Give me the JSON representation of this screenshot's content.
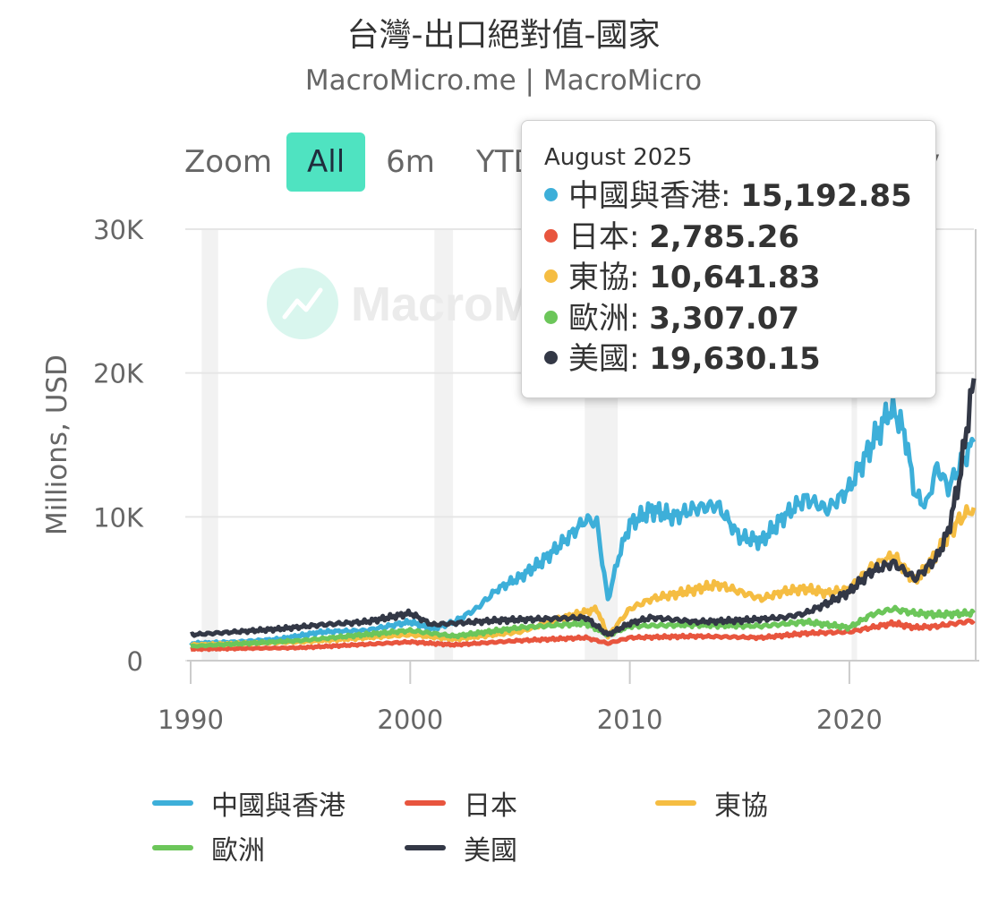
{
  "title": "台灣-出口絕對值-國家",
  "subtitle": "MacroMicro.me | MacroMicro",
  "watermark": "MacroMicro",
  "zoom": {
    "label": "Zoom",
    "buttons": [
      "All",
      "6m",
      "YTD"
    ],
    "active": "All",
    "range_end": "y"
  },
  "tooltip": {
    "date": "August 2025",
    "rows": [
      {
        "name": "中國與香港",
        "value": "15,192.85",
        "color": "#3dafd9"
      },
      {
        "name": "日本",
        "value": "2,785.26",
        "color": "#e8553e"
      },
      {
        "name": "東協",
        "value": "10,641.83",
        "color": "#f5bd42"
      },
      {
        "name": "歐洲",
        "value": "3,307.07",
        "color": "#6cc65a"
      },
      {
        "name": "美國",
        "value": "19,630.15",
        "color": "#333846"
      }
    ]
  },
  "chart_data": {
    "type": "line",
    "title": "台灣-出口絕對值-國家",
    "ylabel": "Millions, USD",
    "ylim": [
      0,
      30000
    ],
    "yticks": [
      0,
      10000,
      20000,
      30000
    ],
    "ytick_labels": [
      "0",
      "10K",
      "20K",
      "30K"
    ],
    "xlim": [
      1990,
      2025.67
    ],
    "xticks": [
      1990,
      2000,
      2010,
      2020
    ],
    "xtick_labels": [
      "1990",
      "2000",
      "2010",
      "2020"
    ],
    "recession_bands": [
      [
        1990.5,
        1991.25
      ],
      [
        2001.1,
        2001.95
      ],
      [
        2007.95,
        2009.45
      ],
      [
        2020.1,
        2020.35
      ]
    ],
    "grid": true,
    "legend_position": "bottom",
    "series": [
      {
        "name": "中國與香港",
        "color": "#3dafd9",
        "points": [
          [
            1990,
            1200
          ],
          [
            1992,
            1300
          ],
          [
            1994,
            1500
          ],
          [
            1996,
            2000
          ],
          [
            1998,
            2100
          ],
          [
            2000,
            2700
          ],
          [
            2001,
            2200
          ],
          [
            2002,
            2700
          ],
          [
            2003,
            3600
          ],
          [
            2004,
            5000
          ],
          [
            2005,
            5800
          ],
          [
            2006,
            6900
          ],
          [
            2007,
            8300
          ],
          [
            2008,
            9800
          ],
          [
            2008.5,
            9600
          ],
          [
            2009.0,
            4200
          ],
          [
            2009.5,
            7300
          ],
          [
            2010,
            9500
          ],
          [
            2011,
            10500
          ],
          [
            2012,
            10000
          ],
          [
            2013,
            10600
          ],
          [
            2014,
            10800
          ],
          [
            2015,
            8600
          ],
          [
            2016,
            8300
          ],
          [
            2017,
            10000
          ],
          [
            2018,
            11300
          ],
          [
            2019,
            10500
          ],
          [
            2020,
            12000
          ],
          [
            2021,
            15000
          ],
          [
            2021.9,
            17600
          ],
          [
            2022.5,
            16000
          ],
          [
            2023,
            11500
          ],
          [
            2023.5,
            10800
          ],
          [
            2024,
            13500
          ],
          [
            2024.5,
            12000
          ],
          [
            2025,
            13500
          ],
          [
            2025.67,
            15192.85
          ]
        ]
      },
      {
        "name": "日本",
        "color": "#e8553e",
        "points": [
          [
            1990,
            800
          ],
          [
            1995,
            900
          ],
          [
            2000,
            1300
          ],
          [
            2002,
            1100
          ],
          [
            2005,
            1400
          ],
          [
            2008,
            1600
          ],
          [
            2009,
            1200
          ],
          [
            2010,
            1600
          ],
          [
            2013,
            1700
          ],
          [
            2016,
            1600
          ],
          [
            2018,
            1900
          ],
          [
            2020,
            2000
          ],
          [
            2022,
            2600
          ],
          [
            2023,
            2300
          ],
          [
            2024,
            2400
          ],
          [
            2025.67,
            2785.26
          ]
        ]
      },
      {
        "name": "東協",
        "color": "#f5bd42",
        "points": [
          [
            1990,
            1100
          ],
          [
            1995,
            1300
          ],
          [
            2000,
            1800
          ],
          [
            2002,
            1500
          ],
          [
            2005,
            2000
          ],
          [
            2007,
            3000
          ],
          [
            2008.5,
            3600
          ],
          [
            2009,
            1700
          ],
          [
            2010,
            3600
          ],
          [
            2011,
            4300
          ],
          [
            2012,
            4600
          ],
          [
            2014,
            5300
          ],
          [
            2016,
            4300
          ],
          [
            2017,
            4800
          ],
          [
            2018,
            5000
          ],
          [
            2019,
            4700
          ],
          [
            2020,
            5000
          ],
          [
            2021,
            6500
          ],
          [
            2022,
            7300
          ],
          [
            2023,
            5500
          ],
          [
            2024,
            7500
          ],
          [
            2025,
            9800
          ],
          [
            2025.67,
            10641.83
          ]
        ]
      },
      {
        "name": "歐洲",
        "color": "#6cc65a",
        "points": [
          [
            1990,
            1000
          ],
          [
            1995,
            1400
          ],
          [
            2000,
            2100
          ],
          [
            2002,
            1700
          ],
          [
            2005,
            2300
          ],
          [
            2008,
            2600
          ],
          [
            2009,
            1800
          ],
          [
            2010,
            2400
          ],
          [
            2013,
            2500
          ],
          [
            2016,
            2400
          ],
          [
            2018,
            2700
          ],
          [
            2020,
            2300
          ],
          [
            2021,
            3200
          ],
          [
            2022,
            3600
          ],
          [
            2023,
            3300
          ],
          [
            2024,
            3200
          ],
          [
            2025.67,
            3307.07
          ]
        ]
      },
      {
        "name": "美國",
        "color": "#333846",
        "points": [
          [
            1990,
            1800
          ],
          [
            1992,
            2000
          ],
          [
            1994,
            2200
          ],
          [
            1996,
            2500
          ],
          [
            1998,
            2700
          ],
          [
            2000,
            3300
          ],
          [
            2001,
            2500
          ],
          [
            2002,
            2600
          ],
          [
            2004,
            2800
          ],
          [
            2006,
            2900
          ],
          [
            2008,
            3000
          ],
          [
            2009,
            1800
          ],
          [
            2010,
            2600
          ],
          [
            2011,
            3000
          ],
          [
            2013,
            2700
          ],
          [
            2015,
            2800
          ],
          [
            2017,
            3000
          ],
          [
            2018,
            3300
          ],
          [
            2019,
            4000
          ],
          [
            2020,
            4800
          ],
          [
            2021,
            6200
          ],
          [
            2022,
            6800
          ],
          [
            2023,
            5700
          ],
          [
            2024,
            7200
          ],
          [
            2024.5,
            9000
          ],
          [
            2025,
            12500
          ],
          [
            2025.67,
            19630.15
          ]
        ]
      }
    ]
  }
}
